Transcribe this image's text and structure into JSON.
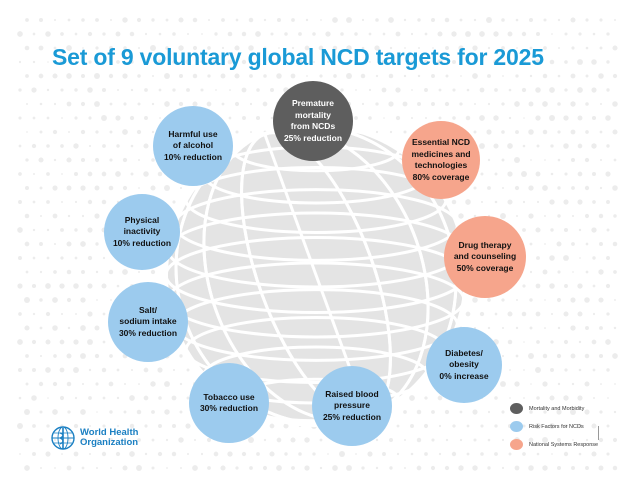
{
  "title": "Set of 9 voluntary global NCD targets for 2025",
  "colors": {
    "title": "#1a9ad6",
    "mortality": "#5e5e5e",
    "risk_factor": "#9ccbee",
    "system_response": "#f6a58c",
    "globe": "#e4e4e4"
  },
  "targets": [
    {
      "name": "premature-mortality",
      "category": "mortality",
      "lines": [
        "Premature",
        "mortality",
        "from NCDs",
        "25% reduction"
      ]
    },
    {
      "name": "essential-ncd-medicines",
      "category": "system_response",
      "lines": [
        "Essential NCD",
        "medicines and",
        "technologies",
        "80% coverage"
      ]
    },
    {
      "name": "drug-therapy",
      "category": "system_response",
      "lines": [
        "Drug therapy",
        "and counseling",
        "50% coverage"
      ]
    },
    {
      "name": "diabetes-obesity",
      "category": "risk_factor",
      "lines": [
        "Diabetes/",
        "obesity",
        "0% increase"
      ]
    },
    {
      "name": "raised-blood-pressure",
      "category": "risk_factor",
      "lines": [
        "Raised blood",
        "pressure",
        "25% reduction"
      ]
    },
    {
      "name": "tobacco-use",
      "category": "risk_factor",
      "lines": [
        "Tobacco use",
        "30% reduction"
      ]
    },
    {
      "name": "salt-sodium",
      "category": "risk_factor",
      "lines": [
        "Salt/",
        "sodium intake",
        "30% reduction"
      ]
    },
    {
      "name": "physical-inactivity",
      "category": "risk_factor",
      "lines": [
        "Physical",
        "inactivity",
        "10% reduction"
      ]
    },
    {
      "name": "harmful-alcohol",
      "category": "risk_factor",
      "lines": [
        "Harmful use",
        "of alcohol",
        "10% reduction"
      ]
    }
  ],
  "legend": [
    {
      "name": "legend-mortality",
      "category": "mortality",
      "label": "Mortality and Morbidity"
    },
    {
      "name": "legend-risk-factors",
      "category": "risk_factor",
      "label": "Risk Factors for NCDs"
    },
    {
      "name": "legend-system-response",
      "category": "system_response",
      "label": "National Systems Response"
    }
  ],
  "who_logo": {
    "lines": [
      "World Health",
      "Organization"
    ],
    "icon": "who-emblem-icon"
  }
}
